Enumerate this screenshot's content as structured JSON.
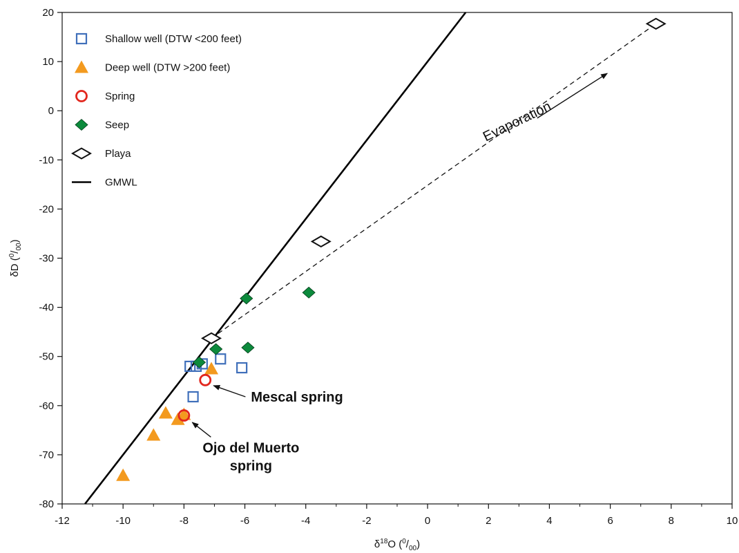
{
  "chart_data": {
    "type": "scatter",
    "xlabel": "δ18O (‰)",
    "xlabel_main": "δ",
    "xlabel_sup": "18",
    "xlabel_tail": "O (",
    "xlabel_unit_sup": "0",
    "xlabel_unit_sub": "00",
    "xlabel_close": ")",
    "ylabel": "δD (‰)",
    "ylabel_main": "δD (",
    "ylabel_unit_sup": "0",
    "ylabel_unit_sub": "00",
    "ylabel_close": ")",
    "xlim": [
      -12,
      10
    ],
    "ylim": [
      -80,
      20
    ],
    "xticks": [
      -12,
      -10,
      -8,
      -6,
      -4,
      -2,
      0,
      2,
      4,
      6,
      8,
      10
    ],
    "yticks": [
      -80,
      -70,
      -60,
      -50,
      -40,
      -30,
      -20,
      -10,
      0,
      10,
      20
    ],
    "grid": false,
    "legend_position": "top-left",
    "colors": {
      "shallow": "#3f6fba",
      "deep": "#f39a1f",
      "spring": "#e2261d",
      "seep": "#0c8a3c",
      "playa": "#111111",
      "gmwl": "#000000"
    },
    "series": [
      {
        "name": "Shallow well (DTW <200 feet)",
        "marker": "open-square",
        "points": [
          {
            "x": -7.8,
            "y": -52.0
          },
          {
            "x": -7.6,
            "y": -52.0
          },
          {
            "x": -7.4,
            "y": -51.5
          },
          {
            "x": -6.8,
            "y": -50.5
          },
          {
            "x": -6.1,
            "y": -52.3
          },
          {
            "x": -7.7,
            "y": -58.2
          }
        ]
      },
      {
        "name": "Deep well (DTW >200 feet)",
        "marker": "filled-triangle",
        "points": [
          {
            "x": -7.1,
            "y": -52.5
          },
          {
            "x": -8.6,
            "y": -61.5
          },
          {
            "x": -8.2,
            "y": -62.8
          },
          {
            "x": -8.0,
            "y": -61.8
          },
          {
            "x": -9.0,
            "y": -66.0
          },
          {
            "x": -10.0,
            "y": -74.2
          }
        ]
      },
      {
        "name": "Spring",
        "marker": "open-circle",
        "points": [
          {
            "x": -7.3,
            "y": -54.8
          },
          {
            "x": -8.0,
            "y": -62.0
          }
        ]
      },
      {
        "name": "Seep",
        "marker": "filled-diamond",
        "points": [
          {
            "x": -7.5,
            "y": -51.2
          },
          {
            "x": -6.95,
            "y": -48.5
          },
          {
            "x": -5.9,
            "y": -48.2
          },
          {
            "x": -5.95,
            "y": -38.2
          },
          {
            "x": -3.9,
            "y": -37.0
          }
        ]
      },
      {
        "name": "Playa",
        "marker": "open-diamond",
        "points": [
          {
            "x": -7.1,
            "y": -46.3
          },
          {
            "x": -3.5,
            "y": -26.6
          },
          {
            "x": 7.5,
            "y": 17.7
          }
        ]
      },
      {
        "name": "GMWL",
        "marker": "line",
        "line": [
          {
            "x": -11.25,
            "y": -80
          },
          {
            "x": 1.25,
            "y": 20
          }
        ]
      }
    ],
    "evaporation_line": [
      {
        "x": -7.1,
        "y": -46.3
      },
      {
        "x": 7.5,
        "y": 17.7
      }
    ],
    "annotations": [
      {
        "text": "Mescal spring",
        "style": "bold",
        "anchor_x": -7.3,
        "anchor_y": -54.8,
        "text_x": -5.8,
        "text_y": -58.2
      },
      {
        "text_lines": [
          "Ojo del Muerto",
          "spring"
        ],
        "style": "bold",
        "anchor_x": -8.0,
        "anchor_y": -62.0,
        "text_x": -5.8,
        "text_y": -69.5
      },
      {
        "text": "Evaporation",
        "style": "rotated",
        "angle": -26,
        "text_x": 3.0,
        "text_y": -3.0,
        "arrow_from": {
          "x": 3.6,
          "y": -1.5
        },
        "arrow_to": {
          "x": 5.9,
          "y": 7.6
        }
      }
    ]
  }
}
